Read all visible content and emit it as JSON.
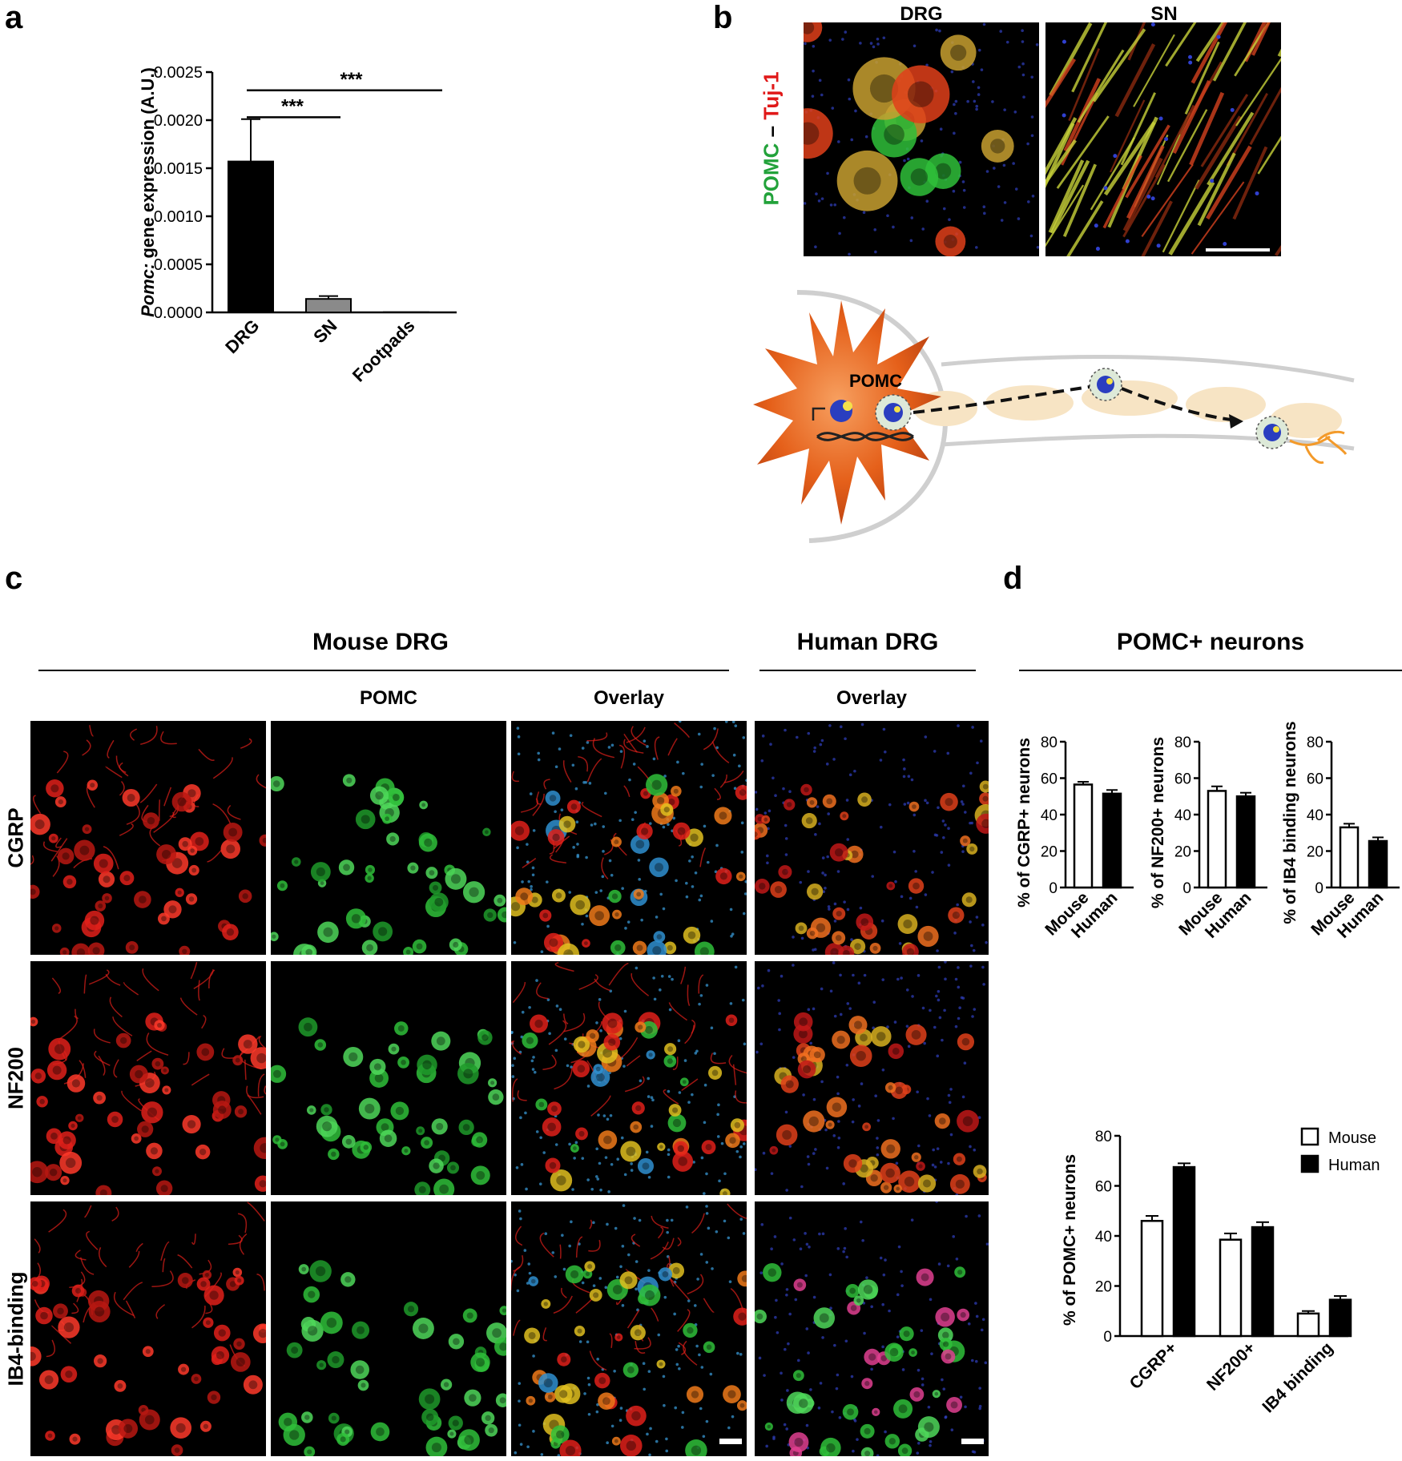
{
  "panels": {
    "a": "a",
    "b": "b",
    "c": "c",
    "d": "d"
  },
  "panel_b": {
    "col_labels": [
      "DRG",
      "SN"
    ],
    "stain_left": "POMC",
    "stain_sep": " – ",
    "stain_right": "Tuj-1",
    "diagram_label": "POMC"
  },
  "panel_c": {
    "group_mouse": "Mouse DRG",
    "group_human": "Human DRG",
    "col_pomc": "POMC",
    "col_overlay_mouse": "Overlay",
    "col_overlay_human": "Overlay",
    "rows": [
      "CGRP",
      "NF200",
      "IB4-binding"
    ]
  },
  "panel_d": {
    "title": "POMC+ neurons"
  },
  "colors": {
    "bar_dark": "#000000",
    "bar_grey": "#808080",
    "bar_white": "#ffffff",
    "red_stain": "#e0201a",
    "green_stain": "#2fbf3a"
  },
  "chart_data": [
    {
      "id": "a",
      "type": "bar",
      "categories": [
        "DRG",
        "SN",
        "Footpads"
      ],
      "values": [
        0.00157,
        0.00014,
        2e-06
      ],
      "errors": [
        0.00044,
        3e-05,
        0
      ],
      "ylabel_italic": "Pomc:",
      "ylabel_rest": " gene expression (A.U.)",
      "ylim": [
        0,
        0.0025
      ],
      "yticks": [
        "0.0000",
        "0.0005",
        "0.0010",
        "0.0015",
        "0.0020",
        "0.0025"
      ],
      "significance": [
        {
          "label": "***",
          "from": "DRG",
          "to": "SN"
        },
        {
          "label": "***",
          "from": "DRG",
          "to": "Footpads"
        }
      ]
    },
    {
      "id": "d1",
      "type": "bar",
      "categories": [
        "Mouse",
        "Human"
      ],
      "values": [
        56.5,
        51.5
      ],
      "errors": [
        1.5,
        2
      ],
      "ylabel": "% of CGRP+ neurons",
      "ylim": [
        0,
        80
      ],
      "yticks": [
        "0",
        "20",
        "40",
        "60",
        "80"
      ]
    },
    {
      "id": "d2",
      "type": "bar",
      "categories": [
        "Mouse",
        "Human"
      ],
      "values": [
        53,
        50
      ],
      "errors": [
        2.5,
        2
      ],
      "ylabel": "% of NF200+ neurons",
      "ylim": [
        0,
        80
      ],
      "yticks": [
        "0",
        "20",
        "40",
        "60",
        "80"
      ]
    },
    {
      "id": "d3",
      "type": "bar",
      "categories": [
        "Mouse",
        "Human"
      ],
      "values": [
        33,
        25.5
      ],
      "errors": [
        2,
        2
      ],
      "ylabel": "% of IB4 binding neurons",
      "ylim": [
        0,
        80
      ],
      "yticks": [
        "0",
        "20",
        "40",
        "60",
        "80"
      ]
    },
    {
      "id": "d4",
      "type": "bar",
      "categories": [
        "CGRP+",
        "NF200+",
        "IB4 binding"
      ],
      "series": [
        {
          "name": "Mouse",
          "values": [
            46,
            38.5,
            9
          ],
          "errors": [
            2,
            2.5,
            1
          ]
        },
        {
          "name": "Human",
          "values": [
            67.5,
            43.5,
            14.5
          ],
          "errors": [
            1.5,
            2,
            1.5
          ]
        }
      ],
      "ylabel": "% of POMC+ neurons",
      "ylim": [
        0,
        80
      ],
      "yticks": [
        "0",
        "20",
        "40",
        "60",
        "80"
      ],
      "legend": "top-right"
    }
  ]
}
